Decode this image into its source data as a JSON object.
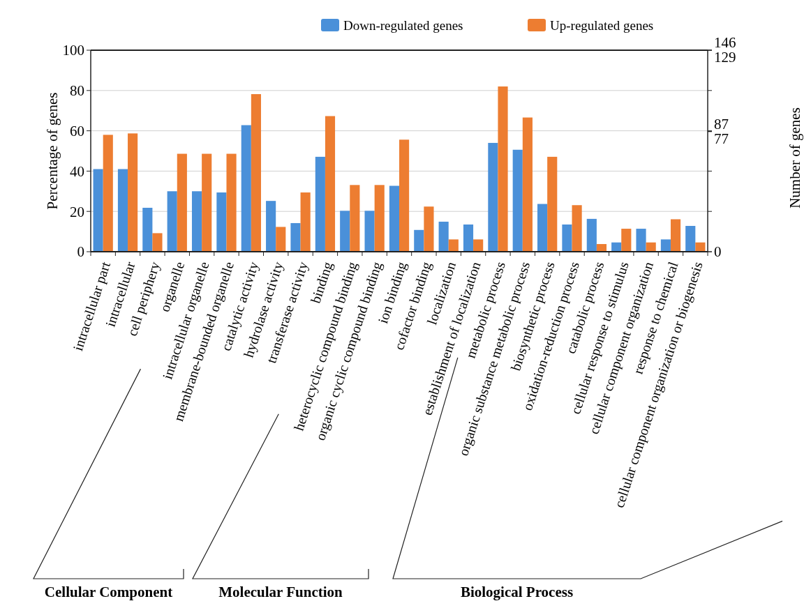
{
  "chart_data": {
    "type": "bar",
    "ylabel": "Percentage of genes",
    "y2label": "Number of genes",
    "categories": [
      "intracellular part",
      "intracellular",
      "cell periphery",
      "organelle",
      "intracellular organelle",
      "membrane-bounded organelle",
      "catalytic activity",
      "hydrolase activity",
      "transferase activity",
      "binding",
      "heterocyclic compound binding",
      "organic cyclic compound binding",
      "ion binding",
      "cofactor binding",
      "localization",
      "establishment of localization",
      "metabolic process",
      "organic substance metabolic process",
      "biosynthetic process",
      "oxidation-reduction process",
      "catabolic process",
      "cellular response to stimulus",
      "cellular component organization",
      "response to chemical",
      "cellular component organization or biogenesis"
    ],
    "series": [
      {
        "name": "Down-regulated genes",
        "color": "#4a90d9",
        "values": [
          41,
          41,
          21.8,
          30,
          30,
          29.4,
          62.8,
          25.2,
          14.2,
          47.1,
          20.3,
          20.3,
          32.7,
          10.8,
          14.9,
          13.5,
          54,
          50.6,
          23.7,
          13.5,
          16.3,
          4.6,
          11.4,
          6.1,
          12.8
        ]
      },
      {
        "name": "Up-regulated genes",
        "color": "#ed7d31",
        "values": [
          58,
          58.7,
          9.2,
          48.6,
          48.6,
          48.6,
          78.2,
          12.3,
          29.4,
          67.3,
          33.1,
          33.1,
          55.6,
          22.4,
          6.1,
          6.1,
          82,
          66.6,
          47.1,
          23.1,
          3.8,
          11.4,
          4.6,
          16.1,
          4.6
        ]
      }
    ],
    "ylim": [
      0,
      100
    ],
    "yticks": [
      0,
      20,
      40,
      60,
      80,
      100
    ],
    "y2lim": [
      0,
      146
    ],
    "y2ticks": [
      0,
      87,
      146
    ],
    "y3lim": [
      0,
      129
    ],
    "y3ticks": [
      77,
      129
    ],
    "grid": "y",
    "legend": "top",
    "annotations": [
      "Cellular Component",
      "Molecular Function",
      "Biological Process"
    ]
  }
}
